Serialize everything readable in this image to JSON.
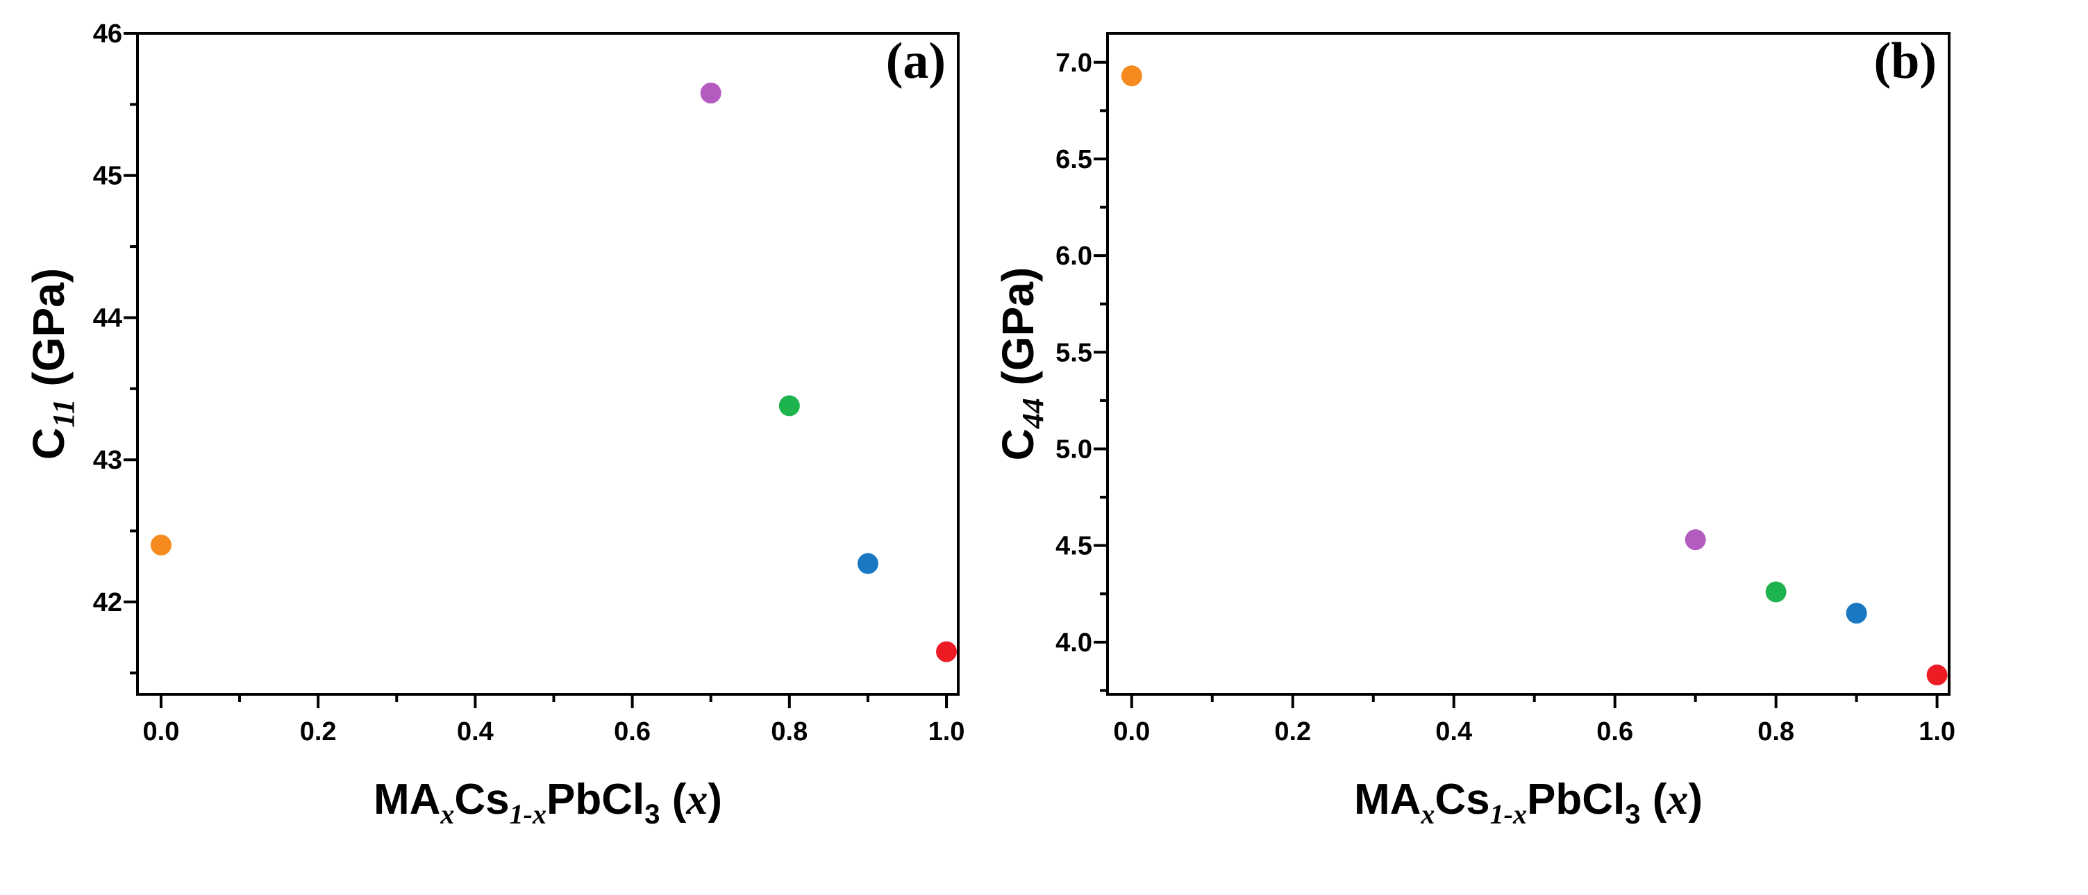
{
  "chart_data": [
    {
      "type": "scatter",
      "panel_label": "(a)",
      "x": [
        0.0,
        0.7,
        0.8,
        0.9,
        1.0
      ],
      "y": [
        42.4,
        45.58,
        43.38,
        42.27,
        41.65
      ],
      "point_colors": [
        "#f58a1f",
        "#b45bc0",
        "#1db34d",
        "#1a78c2",
        "#ed1c24"
      ],
      "xlim": [
        -0.03,
        1.015
      ],
      "ylim": [
        41.35,
        46.0
      ],
      "xticks": [
        0.0,
        0.2,
        0.4,
        0.6,
        0.8,
        1.0
      ],
      "xtick_labels": [
        "0.0",
        "0.2",
        "0.4",
        "0.6",
        "0.8",
        "1.0"
      ],
      "yticks": [
        42,
        43,
        44,
        45,
        46
      ],
      "ytick_labels": [
        "42",
        "43",
        "44",
        "45",
        "46"
      ],
      "xlabel": {
        "main": "MA",
        "sub1": "x",
        "mid": "Cs",
        "sub2": "1-x",
        "mid2": "PbCl",
        "sub3": "3",
        "tail_open": " (",
        "var": "x",
        "tail_close": ")"
      },
      "ylabel": {
        "main": "C",
        "sub": "11",
        "unit": " (GPa)"
      },
      "grid": false,
      "legend": "none"
    },
    {
      "type": "scatter",
      "panel_label": "(b)",
      "x": [
        0.0,
        0.7,
        0.8,
        0.9,
        1.0
      ],
      "y": [
        6.93,
        4.53,
        4.26,
        4.15,
        3.83
      ],
      "point_colors": [
        "#f58a1f",
        "#b45bc0",
        "#1db34d",
        "#1a78c2",
        "#ed1c24"
      ],
      "xlim": [
        -0.03,
        1.015
      ],
      "ylim": [
        3.73,
        7.15
      ],
      "xticks": [
        0.0,
        0.2,
        0.4,
        0.6,
        0.8,
        1.0
      ],
      "xtick_labels": [
        "0.0",
        "0.2",
        "0.4",
        "0.6",
        "0.8",
        "1.0"
      ],
      "yticks": [
        4.0,
        4.5,
        5.0,
        5.5,
        6.0,
        6.5,
        7.0
      ],
      "ytick_labels": [
        "4.0",
        "4.5",
        "5.0",
        "5.5",
        "6.0",
        "6.5",
        "7.0"
      ],
      "xlabel": {
        "main": "MA",
        "sub1": "x",
        "mid": "Cs",
        "sub2": "1-x",
        "mid2": "PbCl",
        "sub3": "3",
        "tail_open": " (",
        "var": "x",
        "tail_close": ")"
      },
      "ylabel": {
        "main": "C",
        "sub": "44",
        "unit": " (GPa)"
      },
      "grid": false,
      "legend": "none"
    }
  ]
}
